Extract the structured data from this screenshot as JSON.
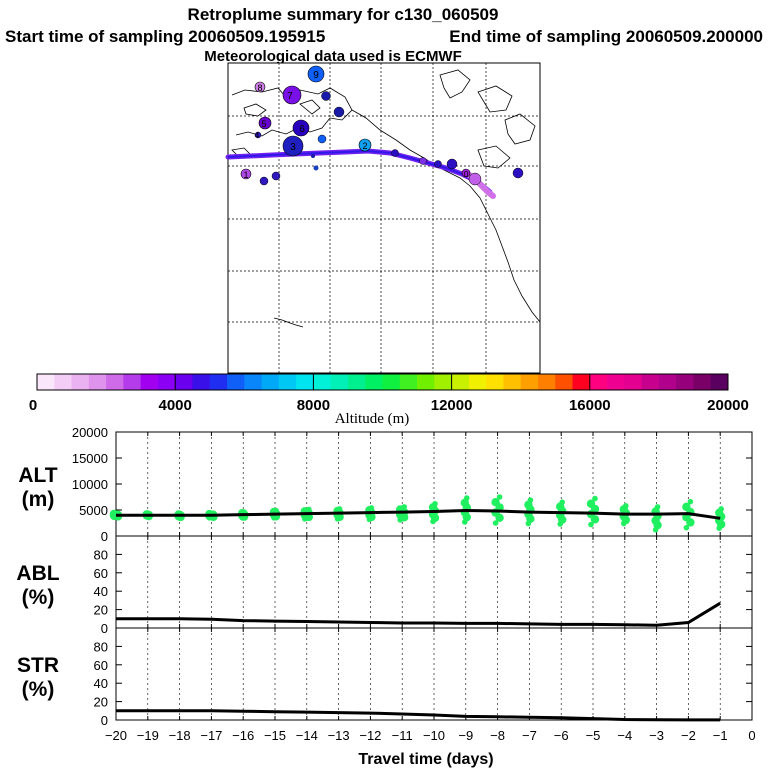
{
  "header": {
    "title": "Retroplume summary for c130_060509",
    "start_time": "Start time of sampling 20060509.195915",
    "end_time": "End time of sampling 20060509.200000",
    "met": "Meteorological data used is ECMWF"
  },
  "colorbar": {
    "label": "Altitude (m)",
    "ticks": [
      "0",
      "4000",
      "8000",
      "12000",
      "16000",
      "20000"
    ],
    "colors": [
      "#fbe7fb",
      "#f3cdf5",
      "#eab2f0",
      "#e093ec",
      "#cf6be8",
      "#b53cea",
      "#a100f0",
      "#8b00f5",
      "#6a00ee",
      "#3a10e8",
      "#1f2ef0",
      "#1060f8",
      "#0a86fb",
      "#00a8f8",
      "#00c8f4",
      "#00e4ef",
      "#00f0d8",
      "#00f0b8",
      "#00f090",
      "#00f064",
      "#10f040",
      "#40f020",
      "#70f000",
      "#a0f000",
      "#c8f000",
      "#f0f000",
      "#ffe000",
      "#ffc000",
      "#ffa000",
      "#ff8000",
      "#ff5000",
      "#ff0020",
      "#ff0080",
      "#f00090",
      "#e40090",
      "#c8008e",
      "#b0008c",
      "#96007a",
      "#7a0068",
      "#5a0060"
    ]
  },
  "map": {
    "markers": [
      {
        "label": "9",
        "color": "#1060f8"
      },
      {
        "label": "8",
        "color": "#d080e8"
      },
      {
        "label": "7",
        "color": "#7a10e8"
      },
      {
        "label": "6",
        "color": "#2a00c0"
      },
      {
        "label": "5",
        "color": "#6a00d0"
      },
      {
        "label": "4",
        "color": "#3018c0"
      },
      {
        "label": "3",
        "color": "#2020c0"
      },
      {
        "label": "2",
        "color": "#10a0f0"
      },
      {
        "label": "1",
        "color": "#b048e8"
      },
      {
        "label": "0",
        "color": "#a020d8"
      }
    ]
  },
  "chart_data": [
    {
      "type": "line",
      "panel": "altitude",
      "ylabel": "ALT (m)",
      "ylabel_line1": "ALT",
      "ylabel_line2": "(m)",
      "ylim": [
        0,
        20000
      ],
      "yticks": [
        "0",
        "5000",
        "10000",
        "15000",
        "20000"
      ],
      "x": [
        -20,
        -19,
        -18,
        -17,
        -16,
        -15,
        -14,
        -13,
        -12,
        -11,
        -10,
        -9,
        -8,
        -7,
        -6,
        -5,
        -4,
        -3,
        -2,
        -1
      ],
      "median": [
        4000,
        4000,
        4000,
        4000,
        4100,
        4200,
        4300,
        4400,
        4500,
        4600,
        4700,
        4900,
        4800,
        4600,
        4500,
        4400,
        4200,
        4200,
        4300,
        3400
      ],
      "scatter_spread": [
        [
          3600,
          4400
        ],
        [
          3700,
          4300
        ],
        [
          3500,
          4300
        ],
        [
          3500,
          4400
        ],
        [
          3500,
          4600
        ],
        [
          3500,
          4900
        ],
        [
          3300,
          5100
        ],
        [
          3300,
          5200
        ],
        [
          3200,
          5400
        ],
        [
          3100,
          5600
        ],
        [
          2800,
          6200
        ],
        [
          2700,
          7300
        ],
        [
          2500,
          7500
        ],
        [
          2400,
          6900
        ],
        [
          2300,
          6500
        ],
        [
          2200,
          7200
        ],
        [
          2400,
          5800
        ],
        [
          1200,
          5600
        ],
        [
          1600,
          6600
        ],
        [
          1500,
          5200
        ]
      ],
      "series_colors": {
        "median": "#000000",
        "points": "#20f060"
      }
    },
    {
      "type": "line",
      "panel": "abl",
      "ylabel": "ABL (%)",
      "ylabel_line1": "ABL",
      "ylabel_line2": "(%)",
      "ylim": [
        0,
        100
      ],
      "yticks": [
        "0",
        "20",
        "40",
        "60",
        "80"
      ],
      "x": [
        -20,
        -19,
        -18,
        -17,
        -16,
        -15,
        -14,
        -13,
        -12,
        -11,
        -10,
        -9,
        -8,
        -7,
        -6,
        -5,
        -4,
        -3,
        -2,
        -1
      ],
      "values": [
        10,
        10,
        10,
        9.5,
        8,
        7.5,
        7,
        6.5,
        6,
        5.5,
        5.5,
        5,
        5,
        4.5,
        4,
        4,
        3.5,
        3,
        6,
        27
      ]
    },
    {
      "type": "line",
      "panel": "str",
      "ylabel": "STR (%)",
      "ylabel_line1": "STR",
      "ylabel_line2": "(%)",
      "ylim": [
        0,
        100
      ],
      "yticks": [
        "0",
        "20",
        "40",
        "60",
        "80"
      ],
      "x": [
        -20,
        -19,
        -18,
        -17,
        -16,
        -15,
        -14,
        -13,
        -12,
        -11,
        -10,
        -9,
        -8,
        -7,
        -6,
        -5,
        -4,
        -3,
        -2,
        -1
      ],
      "values": [
        10,
        10,
        10,
        10,
        9.5,
        9,
        8.5,
        8,
        7.5,
        6.5,
        5.5,
        4,
        3.5,
        3,
        2.5,
        1.5,
        0.5,
        0.3,
        0.2,
        0.2
      ],
      "xlabel": "Travel time (days)",
      "xlim": [
        -20,
        0
      ],
      "xticks": [
        "−20",
        "−19",
        "−18",
        "−17",
        "−16",
        "−15",
        "−14",
        "−13",
        "−12",
        "−11",
        "−10",
        "−9",
        "−8",
        "−7",
        "−6",
        "−5",
        "−4",
        "−3",
        "−2",
        "−1",
        "0"
      ]
    }
  ]
}
